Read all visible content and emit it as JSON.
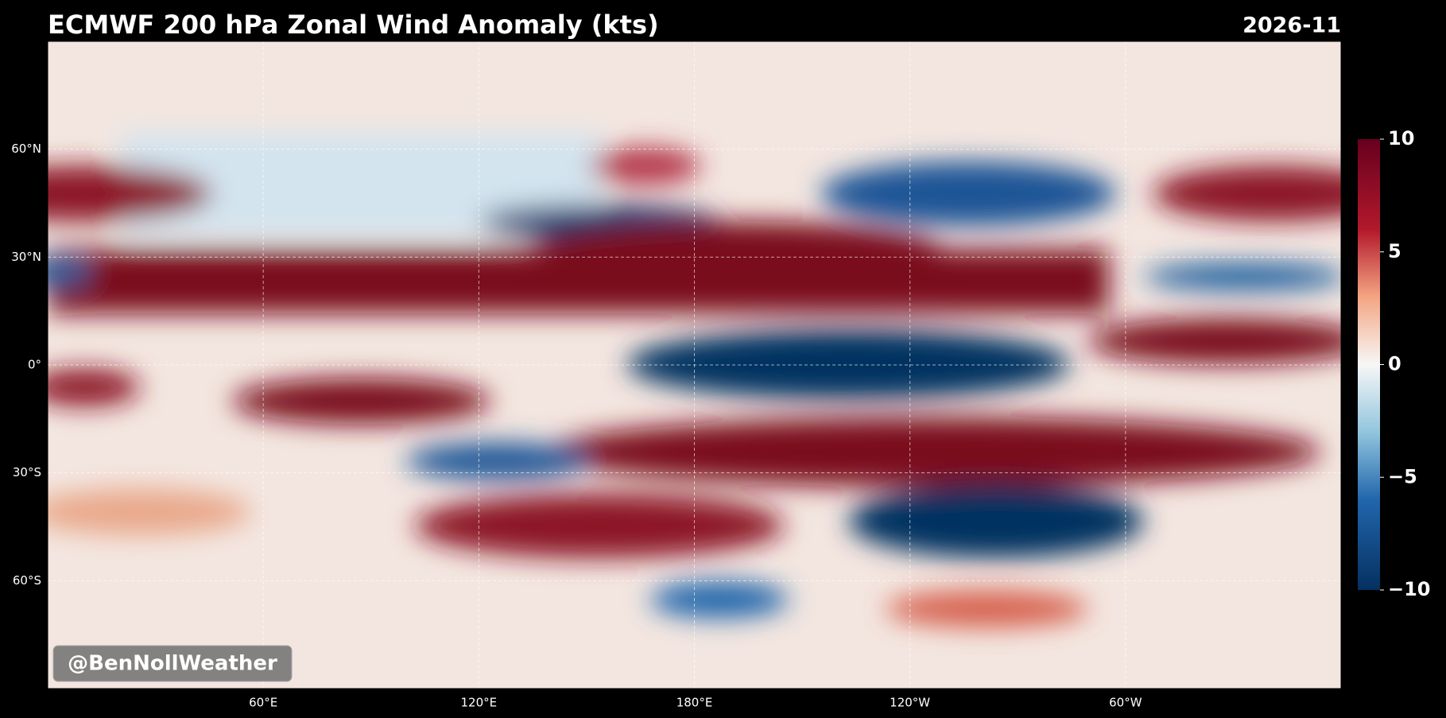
{
  "title": "ECMWF 200 hPa Zonal Wind Anomaly (kts)",
  "date": "2026-11",
  "watermark": "@BenNollWeather",
  "map": {
    "lat_labels": [
      {
        "value": 60,
        "label": "60°N"
      },
      {
        "value": 30,
        "label": "30°N"
      },
      {
        "value": 0,
        "label": "0°"
      },
      {
        "value": -30,
        "label": "30°S"
      },
      {
        "value": -60,
        "label": "60°S"
      }
    ],
    "lon_labels": [
      {
        "value": 60,
        "label": "60°E"
      },
      {
        "value": 120,
        "label": "120°E"
      },
      {
        "value": 180,
        "label": "180°E"
      },
      {
        "value": -120,
        "label": "120°W"
      },
      {
        "value": -60,
        "label": "60°W"
      }
    ]
  },
  "colorbar": {
    "lim": [
      -10,
      10
    ],
    "ticks": [
      10,
      5,
      0,
      {
        "value": -5,
        "label": "−5"
      },
      {
        "value": -10,
        "label": "−10"
      }
    ]
  }
}
